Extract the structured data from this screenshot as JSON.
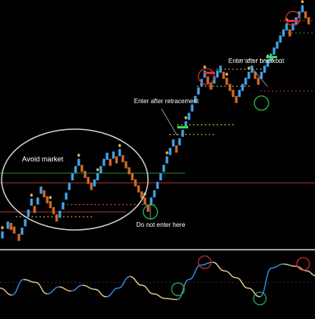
{
  "chart_data": {
    "type": "renko-with-oscillator",
    "title": "",
    "price_panel": {
      "ylim": [
        0,
        100
      ],
      "x_count": 380,
      "bricks": [
        {
          "x": 3,
          "y": 4.5,
          "dir": "up"
        },
        {
          "x": 10,
          "y": 8.5,
          "dir": "up"
        },
        {
          "x": 14,
          "y": 8,
          "dir": "down"
        },
        {
          "x": 18,
          "y": 6.5,
          "dir": "down"
        },
        {
          "x": 24,
          "y": 3.5,
          "dir": "down"
        },
        {
          "x": 28,
          "y": 6,
          "dir": "up"
        },
        {
          "x": 32,
          "y": 9.5,
          "dir": "up"
        },
        {
          "x": 36,
          "y": 13.5,
          "dir": "up"
        },
        {
          "x": 40,
          "y": 18,
          "dir": "up"
        },
        {
          "x": 44,
          "y": 15,
          "dir": "down"
        },
        {
          "x": 48,
          "y": 18.5,
          "dir": "up"
        },
        {
          "x": 52,
          "y": 23,
          "dir": "up"
        },
        {
          "x": 56,
          "y": 21.5,
          "dir": "down"
        },
        {
          "x": 60,
          "y": 19,
          "dir": "down"
        },
        {
          "x": 64,
          "y": 17,
          "dir": "down"
        },
        {
          "x": 68,
          "y": 14.5,
          "dir": "down"
        },
        {
          "x": 72,
          "y": 11.5,
          "dir": "down"
        },
        {
          "x": 76,
          "y": 13,
          "dir": "up"
        },
        {
          "x": 80,
          "y": 16.5,
          "dir": "up"
        },
        {
          "x": 84,
          "y": 20.5,
          "dir": "up"
        },
        {
          "x": 88,
          "y": 24.5,
          "dir": "up"
        },
        {
          "x": 92,
          "y": 28.5,
          "dir": "up"
        },
        {
          "x": 96,
          "y": 31.5,
          "dir": "up"
        },
        {
          "x": 100,
          "y": 34.5,
          "dir": "up"
        },
        {
          "x": 104,
          "y": 32,
          "dir": "down"
        },
        {
          "x": 108,
          "y": 29.5,
          "dir": "down"
        },
        {
          "x": 112,
          "y": 27,
          "dir": "down"
        },
        {
          "x": 116,
          "y": 24.5,
          "dir": "down"
        },
        {
          "x": 120,
          "y": 26,
          "dir": "up"
        },
        {
          "x": 124,
          "y": 28.5,
          "dir": "up"
        },
        {
          "x": 128,
          "y": 31.5,
          "dir": "up"
        },
        {
          "x": 132,
          "y": 34.5,
          "dir": "up"
        },
        {
          "x": 136,
          "y": 37,
          "dir": "up"
        },
        {
          "x": 140,
          "y": 34.5,
          "dir": "down"
        },
        {
          "x": 144,
          "y": 37.5,
          "dir": "up"
        },
        {
          "x": 148,
          "y": 35.5,
          "dir": "down"
        },
        {
          "x": 152,
          "y": 38.5,
          "dir": "up"
        },
        {
          "x": 156,
          "y": 36,
          "dir": "down"
        },
        {
          "x": 160,
          "y": 33.5,
          "dir": "down"
        },
        {
          "x": 164,
          "y": 31,
          "dir": "down"
        },
        {
          "x": 168,
          "y": 28.5,
          "dir": "down"
        },
        {
          "x": 172,
          "y": 26,
          "dir": "down"
        },
        {
          "x": 176,
          "y": 23.5,
          "dir": "down"
        },
        {
          "x": 180,
          "y": 21,
          "dir": "down"
        },
        {
          "x": 184,
          "y": 18.5,
          "dir": "down"
        },
        {
          "x": 188,
          "y": 15.5,
          "dir": "down"
        },
        {
          "x": 192,
          "y": 18.5,
          "dir": "up"
        },
        {
          "x": 196,
          "y": 21.5,
          "dir": "up"
        },
        {
          "x": 200,
          "y": 25,
          "dir": "up"
        },
        {
          "x": 204,
          "y": 28.5,
          "dir": "up"
        },
        {
          "x": 208,
          "y": 32,
          "dir": "up"
        },
        {
          "x": 212,
          "y": 35.5,
          "dir": "up"
        },
        {
          "x": 216,
          "y": 39,
          "dir": "up"
        },
        {
          "x": 220,
          "y": 42.5,
          "dir": "up"
        },
        {
          "x": 224,
          "y": 40,
          "dir": "down"
        },
        {
          "x": 228,
          "y": 43,
          "dir": "up"
        },
        {
          "x": 232,
          "y": 46.5,
          "dir": "up"
        },
        {
          "x": 236,
          "y": 50,
          "dir": "up"
        },
        {
          "x": 240,
          "y": 53.5,
          "dir": "up"
        },
        {
          "x": 244,
          "y": 57,
          "dir": "up"
        },
        {
          "x": 248,
          "y": 60.5,
          "dir": "up"
        },
        {
          "x": 252,
          "y": 64,
          "dir": "up"
        },
        {
          "x": 256,
          "y": 67.5,
          "dir": "up"
        },
        {
          "x": 260,
          "y": 71,
          "dir": "up"
        },
        {
          "x": 264,
          "y": 68.5,
          "dir": "down"
        },
        {
          "x": 268,
          "y": 66,
          "dir": "down"
        },
        {
          "x": 272,
          "y": 68.5,
          "dir": "up"
        },
        {
          "x": 276,
          "y": 71,
          "dir": "up"
        },
        {
          "x": 280,
          "y": 73,
          "dir": "up"
        },
        {
          "x": 284,
          "y": 70.5,
          "dir": "down"
        },
        {
          "x": 288,
          "y": 68,
          "dir": "down"
        },
        {
          "x": 292,
          "y": 65.5,
          "dir": "down"
        },
        {
          "x": 296,
          "y": 63,
          "dir": "down"
        },
        {
          "x": 300,
          "y": 60.5,
          "dir": "down"
        },
        {
          "x": 304,
          "y": 63,
          "dir": "up"
        },
        {
          "x": 308,
          "y": 65.5,
          "dir": "up"
        },
        {
          "x": 312,
          "y": 68,
          "dir": "up"
        },
        {
          "x": 316,
          "y": 70.5,
          "dir": "up"
        },
        {
          "x": 320,
          "y": 73,
          "dir": "up"
        },
        {
          "x": 324,
          "y": 70.5,
          "dir": "down"
        },
        {
          "x": 328,
          "y": 68,
          "dir": "down"
        },
        {
          "x": 332,
          "y": 70.5,
          "dir": "up"
        },
        {
          "x": 336,
          "y": 73,
          "dir": "up"
        },
        {
          "x": 340,
          "y": 75.5,
          "dir": "up"
        },
        {
          "x": 344,
          "y": 78,
          "dir": "up"
        },
        {
          "x": 348,
          "y": 80.5,
          "dir": "up"
        },
        {
          "x": 352,
          "y": 83,
          "dir": "up"
        },
        {
          "x": 356,
          "y": 85.5,
          "dir": "up"
        },
        {
          "x": 360,
          "y": 88,
          "dir": "up"
        },
        {
          "x": 364,
          "y": 90.5,
          "dir": "up"
        },
        {
          "x": 368,
          "y": 88,
          "dir": "down"
        },
        {
          "x": 372,
          "y": 90.5,
          "dir": "up"
        },
        {
          "x": 376,
          "y": 93,
          "dir": "up"
        },
        {
          "x": 380,
          "y": 95.5,
          "dir": "up"
        },
        {
          "x": 384,
          "y": 98,
          "dir": "up"
        },
        {
          "x": 388,
          "y": 95.5,
          "dir": "down"
        },
        {
          "x": 392,
          "y": 93,
          "dir": "down"
        }
      ],
      "level_lines": [
        {
          "y": 30,
          "color": "#1e8c2e",
          "from": 0,
          "to": 235,
          "style": "solid"
        },
        {
          "y": 26,
          "color": "#b03030",
          "from": 0,
          "to": 400,
          "style": "solid"
        },
        {
          "y": 14,
          "color": "#b03030",
          "from": 0,
          "to": 160,
          "style": "solid"
        },
        {
          "y": 17,
          "color": "#d06a3a",
          "from": 80,
          "to": 200,
          "style": "dashed"
        },
        {
          "y": 12,
          "color": "#d4c04a",
          "from": 20,
          "to": 120,
          "style": "dashed"
        },
        {
          "y": 46,
          "color": "#d4c04a",
          "from": 215,
          "to": 275,
          "style": "dashed"
        },
        {
          "y": 50,
          "color": "#d4c04a",
          "from": 225,
          "to": 300,
          "style": "dashed"
        },
        {
          "y": 66,
          "color": "#d4c04a",
          "from": 250,
          "to": 320,
          "style": "dashed"
        },
        {
          "y": 73,
          "color": "#d4c04a",
          "from": 275,
          "to": 340,
          "style": "dashed"
        },
        {
          "y": 77,
          "color": "#d4c04a",
          "from": 300,
          "to": 360,
          "style": "dashed"
        },
        {
          "y": 64,
          "color": "#b03030",
          "from": 330,
          "to": 400,
          "style": "dashed"
        },
        {
          "y": 93,
          "color": "#b03030",
          "from": 355,
          "to": 400,
          "style": "dashed"
        },
        {
          "y": 88,
          "color": "#1e8c2e",
          "from": 355,
          "to": 400,
          "style": "dashed"
        }
      ],
      "markers": [
        {
          "x": 232,
          "y": 49,
          "color": "#35e04a",
          "w": 14
        },
        {
          "x": 345,
          "y": 78,
          "color": "#35e04a",
          "w": 14
        },
        {
          "x": 266,
          "y": 71.5,
          "color": "#e03030",
          "w": 14
        },
        {
          "x": 372,
          "y": 93,
          "color": "#e03030",
          "w": 14
        }
      ],
      "circles": [
        {
          "x": 262,
          "y": 70,
          "r": 10,
          "color": "#d03030"
        },
        {
          "x": 372,
          "y": 94,
          "r": 9,
          "color": "#d03030"
        },
        {
          "x": 191,
          "y": 14,
          "r": 9,
          "color": "#2fb84a"
        },
        {
          "x": 332,
          "y": 59,
          "r": 9,
          "color": "#2fb84a"
        }
      ]
    },
    "oscillator_panel": {
      "ylim": [
        0,
        100
      ],
      "x": [
        0,
        15,
        30,
        45,
        60,
        75,
        90,
        105,
        120,
        135,
        150,
        165,
        180,
        195,
        210,
        225,
        240,
        255,
        270,
        285,
        300,
        315,
        330,
        345,
        360,
        375,
        390,
        400
      ],
      "values": [
        40,
        28,
        55,
        50,
        30,
        42,
        35,
        45,
        38,
        25,
        40,
        60,
        45,
        30,
        22,
        20,
        55,
        80,
        85,
        70,
        58,
        40,
        25,
        75,
        82,
        78,
        70,
        62
      ],
      "up_color": "#3b8ee0",
      "down_color": "#e8c98a",
      "circles": [
        {
          "x": 226,
          "y": 38,
          "color": "#2fb84a"
        },
        {
          "x": 260,
          "y": 85,
          "color": "#d03030"
        },
        {
          "x": 330,
          "y": 22,
          "color": "#2fb84a"
        },
        {
          "x": 385,
          "y": 82,
          "color": "#d03030"
        }
      ]
    },
    "annotations": {
      "avoid_market": "Avoid market",
      "do_not_enter": "Do not enter here",
      "enter_retrace": "Enter after retracement",
      "enter_breakout": "Enter after breakout"
    },
    "colors": {
      "background": "#000000",
      "brick_up": "#3fa7ef",
      "brick_down": "#d66a2a",
      "ellipse": "#cfcfcf",
      "separator": "#ffffff",
      "annotation_text": "#ffffff",
      "zero_line": "#555555"
    }
  }
}
